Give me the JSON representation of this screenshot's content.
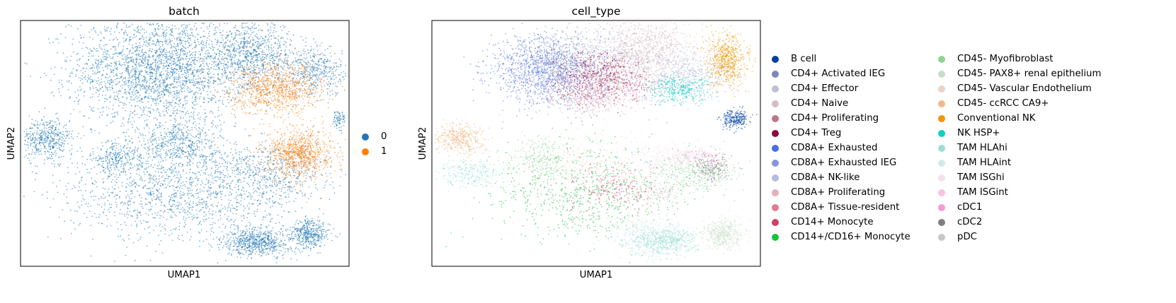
{
  "chart_data": [
    {
      "type": "scatter",
      "title": "batch",
      "xlabel": "UMAP1",
      "ylabel": "UMAP2",
      "grid": false,
      "legend_position": "right",
      "series": [
        {
          "name": "0",
          "color": "#1f77b4"
        },
        {
          "name": "1",
          "color": "#ff7f0e"
        }
      ],
      "clusters": [
        {
          "series": "0",
          "cx": 0.42,
          "cy": 0.8,
          "sx": 0.13,
          "sy": 0.11,
          "n": 2600
        },
        {
          "series": "0",
          "cx": 0.7,
          "cy": 0.86,
          "sx": 0.07,
          "sy": 0.07,
          "n": 900
        },
        {
          "series": "0",
          "cx": 0.9,
          "cy": 0.79,
          "sx": 0.05,
          "sy": 0.05,
          "n": 450
        },
        {
          "series": "0",
          "cx": 0.08,
          "cy": 0.52,
          "sx": 0.04,
          "sy": 0.04,
          "n": 450
        },
        {
          "series": "0",
          "cx": 0.48,
          "cy": 0.5,
          "sx": 0.06,
          "sy": 0.05,
          "n": 500
        },
        {
          "series": "0",
          "cx": 0.48,
          "cy": 0.3,
          "sx": 0.18,
          "sy": 0.1,
          "n": 1400
        },
        {
          "series": "0",
          "cx": 0.76,
          "cy": 0.38,
          "sx": 0.09,
          "sy": 0.06,
          "n": 500
        },
        {
          "series": "0",
          "cx": 0.72,
          "cy": 0.1,
          "sx": 0.05,
          "sy": 0.03,
          "n": 650
        },
        {
          "series": "0",
          "cx": 0.88,
          "cy": 0.13,
          "sx": 0.03,
          "sy": 0.03,
          "n": 400
        },
        {
          "series": "0",
          "cx": 0.97,
          "cy": 0.6,
          "sx": 0.01,
          "sy": 0.02,
          "n": 80
        },
        {
          "series": "0",
          "cx": 0.29,
          "cy": 0.44,
          "sx": 0.04,
          "sy": 0.03,
          "n": 250
        },
        {
          "series": "1",
          "cx": 0.78,
          "cy": 0.72,
          "sx": 0.07,
          "sy": 0.05,
          "n": 900
        },
        {
          "series": "1",
          "cx": 0.85,
          "cy": 0.46,
          "sx": 0.05,
          "sy": 0.05,
          "n": 900
        }
      ]
    },
    {
      "type": "scatter",
      "title": "cell_type",
      "xlabel": "UMAP1",
      "ylabel": "UMAP2",
      "grid": false,
      "legend_position": "right",
      "series": [
        {
          "name": "B cell",
          "color": "#023fa5"
        },
        {
          "name": "CD4+ Activated IEG",
          "color": "#7d87b9"
        },
        {
          "name": "CD4+ Effector",
          "color": "#bec1d4"
        },
        {
          "name": "CD4+ Naive",
          "color": "#d6bcc0"
        },
        {
          "name": "CD4+ Proliferating",
          "color": "#bb7784"
        },
        {
          "name": "CD4+ Treg",
          "color": "#8e063b"
        },
        {
          "name": "CD8A+ Exhausted",
          "color": "#4a6fe3"
        },
        {
          "name": "CD8A+ Exhausted IEG",
          "color": "#8595e1"
        },
        {
          "name": "CD8A+ NK-like",
          "color": "#b5bbe3"
        },
        {
          "name": "CD8A+ Proliferating",
          "color": "#e6afb9"
        },
        {
          "name": "CD8A+ Tissue-resident",
          "color": "#e07b91"
        },
        {
          "name": "CD14+ Monocyte",
          "color": "#d33f6a"
        },
        {
          "name": "CD14+/CD16+ Monocyte",
          "color": "#11c638"
        },
        {
          "name": "CD45- Myofibroblast",
          "color": "#8dd593"
        },
        {
          "name": "CD45- PAX8+ renal epithelium",
          "color": "#c6dec7"
        },
        {
          "name": "CD45- Vascular Endothelium",
          "color": "#ead3c6"
        },
        {
          "name": "CD45- ccRCC CA9+",
          "color": "#f0b98d"
        },
        {
          "name": "Conventional NK",
          "color": "#ef9708"
        },
        {
          "name": "NK HSP+",
          "color": "#0fcfc0"
        },
        {
          "name": "TAM HLAhi",
          "color": "#9cded6"
        },
        {
          "name": "TAM HLAint",
          "color": "#d5eae7"
        },
        {
          "name": "TAM ISGhi",
          "color": "#f3e1eb"
        },
        {
          "name": "TAM ISGint",
          "color": "#f6c4e1"
        },
        {
          "name": "cDC1",
          "color": "#f79cd4"
        },
        {
          "name": "cDC2",
          "color": "#7f7f7f"
        },
        {
          "name": "pDC",
          "color": "#c7c7c7"
        }
      ],
      "clusters": [
        {
          "series": "CD8A+ Exhausted",
          "cx": 0.33,
          "cy": 0.8,
          "sx": 0.08,
          "sy": 0.07,
          "n": 900
        },
        {
          "series": "CD8A+ Exhausted IEG",
          "cx": 0.42,
          "cy": 0.78,
          "sx": 0.08,
          "sy": 0.07,
          "n": 600
        },
        {
          "series": "CD4+ Treg",
          "cx": 0.52,
          "cy": 0.78,
          "sx": 0.06,
          "sy": 0.05,
          "n": 450
        },
        {
          "series": "CD4+ Naive",
          "cx": 0.65,
          "cy": 0.87,
          "sx": 0.08,
          "sy": 0.07,
          "n": 1000
        },
        {
          "series": "CD4+ Effector",
          "cx": 0.55,
          "cy": 0.84,
          "sx": 0.1,
          "sy": 0.08,
          "n": 500
        },
        {
          "series": "CD8A+ NK-like",
          "cx": 0.8,
          "cy": 0.78,
          "sx": 0.06,
          "sy": 0.05,
          "n": 400
        },
        {
          "series": "CD4+ Proliferating",
          "cx": 0.45,
          "cy": 0.72,
          "sx": 0.05,
          "sy": 0.04,
          "n": 250
        },
        {
          "series": "CD4+ Activated IEG",
          "cx": 0.38,
          "cy": 0.84,
          "sx": 0.06,
          "sy": 0.05,
          "n": 300
        },
        {
          "series": "CD8A+ Tissue-resident",
          "cx": 0.6,
          "cy": 0.74,
          "sx": 0.06,
          "sy": 0.04,
          "n": 250
        },
        {
          "series": "CD8A+ Proliferating",
          "cx": 0.5,
          "cy": 0.68,
          "sx": 0.05,
          "sy": 0.03,
          "n": 200
        },
        {
          "series": "NK HSP+",
          "cx": 0.75,
          "cy": 0.72,
          "sx": 0.05,
          "sy": 0.03,
          "n": 350
        },
        {
          "series": "Conventional NK",
          "cx": 0.9,
          "cy": 0.84,
          "sx": 0.03,
          "sy": 0.05,
          "n": 600
        },
        {
          "series": "B cell",
          "cx": 0.92,
          "cy": 0.6,
          "sx": 0.02,
          "sy": 0.02,
          "n": 250
        },
        {
          "series": "CD45- ccRCC CA9+",
          "cx": 0.08,
          "cy": 0.52,
          "sx": 0.04,
          "sy": 0.03,
          "n": 450
        },
        {
          "series": "CD14+/CD16+ Monocyte",
          "cx": 0.45,
          "cy": 0.3,
          "sx": 0.15,
          "sy": 0.1,
          "n": 700
        },
        {
          "series": "CD14+ Monocyte",
          "cx": 0.55,
          "cy": 0.32,
          "sx": 0.08,
          "sy": 0.06,
          "n": 250
        },
        {
          "series": "CD45- Vascular Endothelium",
          "cx": 0.5,
          "cy": 0.38,
          "sx": 0.12,
          "sy": 0.08,
          "n": 450
        },
        {
          "series": "TAM HLAhi",
          "cx": 0.7,
          "cy": 0.1,
          "sx": 0.05,
          "sy": 0.03,
          "n": 650
        },
        {
          "series": "TAM HLAint",
          "cx": 0.62,
          "cy": 0.16,
          "sx": 0.06,
          "sy": 0.04,
          "n": 250
        },
        {
          "series": "CD45- PAX8+ renal epithelium",
          "cx": 0.89,
          "cy": 0.13,
          "sx": 0.03,
          "sy": 0.03,
          "n": 400
        },
        {
          "series": "cDC2",
          "cx": 0.85,
          "cy": 0.4,
          "sx": 0.03,
          "sy": 0.03,
          "n": 200
        },
        {
          "series": "TAM ISGint",
          "cx": 0.78,
          "cy": 0.45,
          "sx": 0.03,
          "sy": 0.02,
          "n": 150
        },
        {
          "series": "CD45- Myofibroblast",
          "cx": 0.8,
          "cy": 0.38,
          "sx": 0.06,
          "sy": 0.04,
          "n": 300
        },
        {
          "series": "TAM HLAhi",
          "cx": 0.12,
          "cy": 0.38,
          "sx": 0.05,
          "sy": 0.03,
          "n": 250
        },
        {
          "series": "TAM ISGhi",
          "cx": 0.7,
          "cy": 0.42,
          "sx": 0.05,
          "sy": 0.03,
          "n": 150
        },
        {
          "series": "CD45- Myofibroblast",
          "cx": 0.33,
          "cy": 0.45,
          "sx": 0.05,
          "sy": 0.04,
          "n": 200
        },
        {
          "series": "cDC1",
          "cx": 0.85,
          "cy": 0.44,
          "sx": 0.02,
          "sy": 0.02,
          "n": 60
        },
        {
          "series": "pDC",
          "cx": 0.7,
          "cy": 0.3,
          "sx": 0.04,
          "sy": 0.02,
          "n": 80
        }
      ]
    }
  ]
}
